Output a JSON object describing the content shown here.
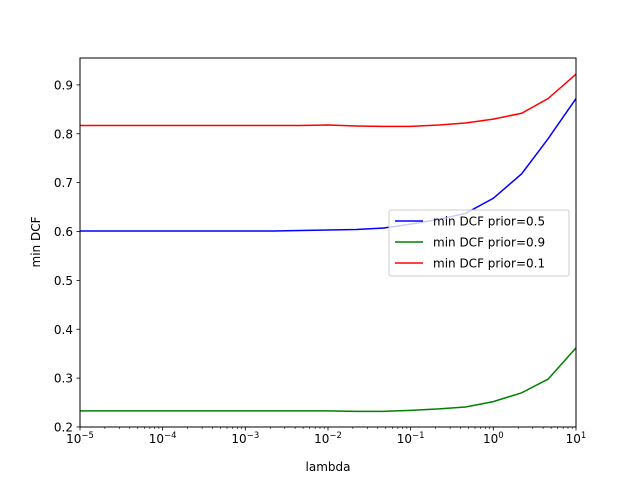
{
  "chart_data": {
    "type": "line",
    "title": "",
    "xlabel": "lambda",
    "ylabel": "min DCF",
    "xscale": "log",
    "xlim": [
      1e-05,
      10
    ],
    "ylim": [
      0.2,
      0.955
    ],
    "grid": false,
    "legend_position": "center-right",
    "x_tick_labels": [
      {
        "base": "10",
        "exp": "−5"
      },
      {
        "base": "10",
        "exp": "−4"
      },
      {
        "base": "10",
        "exp": "−3"
      },
      {
        "base": "10",
        "exp": "−2"
      },
      {
        "base": "10",
        "exp": "−1"
      },
      {
        "base": "10",
        "exp": "0"
      },
      {
        "base": "10",
        "exp": "1"
      }
    ],
    "x_tick_values": [
      1e-05,
      0.0001,
      0.001,
      0.01,
      0.1,
      1,
      10
    ],
    "y_ticks": [
      0.2,
      0.3,
      0.4,
      0.5,
      0.6,
      0.7,
      0.8,
      0.9
    ],
    "y_tick_labels": [
      "0.2",
      "0.3",
      "0.4",
      "0.5",
      "0.6",
      "0.7",
      "0.8",
      "0.9"
    ],
    "x": [
      1e-05,
      2.2e-05,
      4.6e-05,
      0.0001,
      0.00022,
      0.00046,
      0.001,
      0.0022,
      0.0046,
      0.01,
      0.022,
      0.046,
      0.1,
      0.22,
      0.46,
      1,
      2.2,
      4.6,
      10
    ],
    "series": [
      {
        "name": "min DCF prior=0.5",
        "color": "#0000ff",
        "values": [
          0.601,
          0.601,
          0.601,
          0.601,
          0.601,
          0.601,
          0.601,
          0.601,
          0.602,
          0.603,
          0.604,
          0.607,
          0.615,
          0.625,
          0.637,
          0.668,
          0.718,
          0.79,
          0.872
        ]
      },
      {
        "name": "min DCF prior=0.9",
        "color": "#008000",
        "values": [
          0.233,
          0.233,
          0.233,
          0.233,
          0.233,
          0.233,
          0.233,
          0.233,
          0.233,
          0.233,
          0.232,
          0.232,
          0.234,
          0.237,
          0.241,
          0.252,
          0.27,
          0.298,
          0.362
        ]
      },
      {
        "name": "min DCF prior=0.1",
        "color": "#ff0000",
        "values": [
          0.817,
          0.817,
          0.817,
          0.817,
          0.817,
          0.817,
          0.817,
          0.817,
          0.817,
          0.818,
          0.816,
          0.815,
          0.815,
          0.818,
          0.822,
          0.83,
          0.842,
          0.872,
          0.922
        ]
      }
    ]
  }
}
